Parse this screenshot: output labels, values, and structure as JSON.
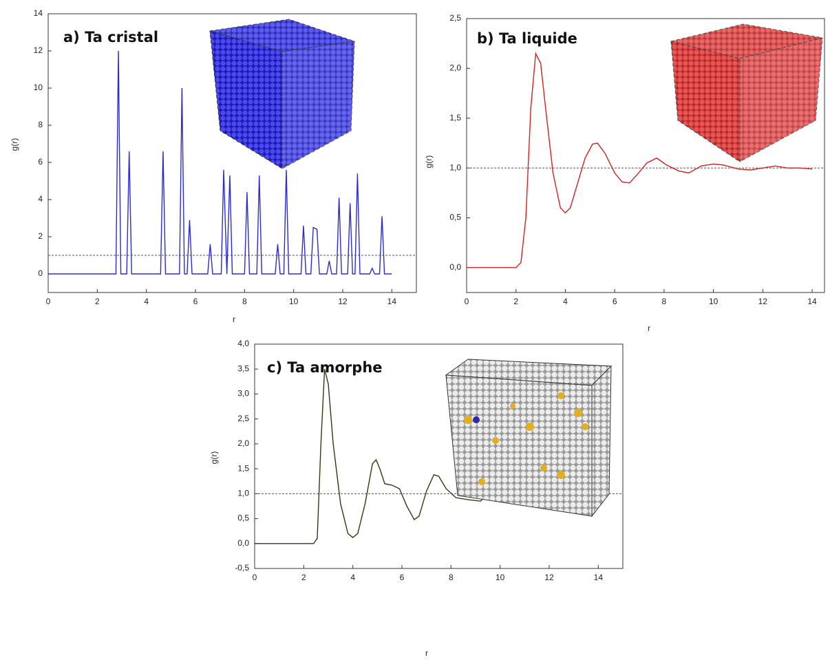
{
  "chart_data": [
    {
      "type": "line",
      "title": "a) Ta cristal",
      "x_label": "r",
      "y_label": "g(r)",
      "color": "#2b2bd0",
      "x": [
        0,
        2.76,
        2.86,
        2.96,
        3.2,
        3.3,
        3.4,
        4.58,
        4.68,
        4.78,
        5.35,
        5.45,
        5.55,
        5.66,
        5.76,
        5.86,
        6.5,
        6.6,
        6.7,
        7.05,
        7.15,
        7.28,
        7.4,
        7.5,
        8.0,
        8.1,
        8.2,
        8.5,
        8.6,
        8.7,
        9.25,
        9.35,
        9.45,
        9.6,
        9.7,
        9.8,
        10.3,
        10.4,
        10.5,
        10.7,
        10.8,
        10.95,
        11.05,
        11.35,
        11.45,
        11.55,
        11.75,
        11.85,
        11.95,
        12.2,
        12.3,
        12.4,
        12.5,
        12.6,
        12.7,
        13.1,
        13.2,
        13.3,
        13.5,
        13.6,
        13.7,
        14
      ],
      "values": [
        0,
        0,
        12,
        0,
        0,
        6.6,
        0,
        0,
        6.6,
        0,
        0,
        10,
        0,
        0,
        2.9,
        0,
        0,
        1.6,
        0,
        0,
        5.6,
        0,
        5.3,
        0,
        0,
        4.4,
        0,
        0,
        5.3,
        0,
        0,
        1.6,
        0,
        0,
        5.6,
        0,
        0,
        2.6,
        0,
        0,
        2.5,
        2.4,
        0,
        0,
        0.7,
        0,
        0,
        4.1,
        0,
        0,
        3.8,
        0,
        0,
        5.4,
        0,
        0,
        0.3,
        0,
        0,
        3.1,
        0,
        0
      ],
      "reference_line": 1,
      "xlim": [
        0,
        15
      ],
      "xticks": [
        0,
        2,
        4,
        6,
        8,
        10,
        12,
        14
      ],
      "ylim": [
        -1,
        14
      ],
      "yticks": [
        0,
        2,
        4,
        6,
        8,
        10,
        12,
        14
      ]
    },
    {
      "type": "line",
      "title": "b) Ta liquide",
      "x_label": "r",
      "y_label": "g(r)",
      "color": "#d42020",
      "x": [
        0,
        2.0,
        2.2,
        2.4,
        2.6,
        2.8,
        3.0,
        3.2,
        3.5,
        3.8,
        4.0,
        4.2,
        4.5,
        4.8,
        5.1,
        5.3,
        5.6,
        6.0,
        6.3,
        6.6,
        6.9,
        7.3,
        7.7,
        8.1,
        8.6,
        9.0,
        9.5,
        10.0,
        10.4,
        11.0,
        11.5,
        12.0,
        12.5,
        13.0,
        13.5,
        14.0
      ],
      "values": [
        0,
        0,
        0.05,
        0.5,
        1.6,
        2.15,
        2.05,
        1.6,
        0.95,
        0.6,
        0.55,
        0.6,
        0.85,
        1.1,
        1.24,
        1.25,
        1.15,
        0.95,
        0.86,
        0.85,
        0.93,
        1.05,
        1.1,
        1.03,
        0.97,
        0.95,
        1.02,
        1.04,
        1.03,
        0.99,
        0.98,
        1.0,
        1.02,
        1.0,
        1.0,
        0.99
      ],
      "reference_line": 1,
      "xlim": [
        0,
        14.5
      ],
      "xticks": [
        0,
        2,
        4,
        6,
        8,
        10,
        12,
        14
      ],
      "ylim": [
        -0.25,
        2.5
      ],
      "yticks": [
        {
          "value": 0,
          "label": "0,0"
        },
        {
          "value": 0.5,
          "label": "0,5"
        },
        {
          "value": 1,
          "label": "1,0"
        },
        {
          "value": 1.5,
          "label": "1,5"
        },
        {
          "value": 2,
          "label": "2,0"
        },
        {
          "value": 2.5,
          "label": "2,5"
        }
      ]
    },
    {
      "type": "line",
      "title": "c) Ta amorphe",
      "x_label": "r",
      "y_label": "g(r)",
      "color": "#2d3a10",
      "x": [
        0,
        2.4,
        2.55,
        2.7,
        2.85,
        3.0,
        3.2,
        3.5,
        3.8,
        4.0,
        4.2,
        4.5,
        4.8,
        4.95,
        5.1,
        5.3,
        5.6,
        5.9,
        6.2,
        6.5,
        6.7,
        7.0,
        7.3,
        7.5,
        7.8,
        8.2,
        8.7,
        9.2,
        9.6,
        9.9,
        10.2,
        10.6,
        11.0,
        11.5,
        12.0,
        12.3,
        12.7,
        13.2,
        13.6,
        14.0
      ],
      "values": [
        0,
        0,
        0.1,
        2.0,
        3.5,
        3.2,
        2.0,
        0.8,
        0.2,
        0.12,
        0.2,
        0.8,
        1.6,
        1.68,
        1.5,
        1.2,
        1.17,
        1.1,
        0.75,
        0.48,
        0.55,
        1.05,
        1.38,
        1.35,
        1.1,
        0.92,
        0.88,
        0.85,
        1.05,
        1.18,
        1.15,
        0.95,
        0.88,
        0.92,
        1.03,
        1.08,
        1.0,
        0.95,
        0.94,
        1.0
      ],
      "reference_line": 1,
      "xlim": [
        0,
        15
      ],
      "xticks": [
        0,
        2,
        4,
        6,
        8,
        10,
        12,
        14
      ],
      "ylim": [
        -0.5,
        4.0
      ],
      "yticks": [
        {
          "value": -0.5,
          "label": "-0,5"
        },
        {
          "value": 0,
          "label": "0,0"
        },
        {
          "value": 0.5,
          "label": "0,5"
        },
        {
          "value": 1,
          "label": "1,0"
        },
        {
          "value": 1.5,
          "label": "1,5"
        },
        {
          "value": 2,
          "label": "2,0"
        },
        {
          "value": 2.5,
          "label": "2,5"
        },
        {
          "value": 3,
          "label": "3,0"
        },
        {
          "value": 3.5,
          "label": "3,5"
        },
        {
          "value": 4,
          "label": "4,0"
        }
      ]
    }
  ]
}
